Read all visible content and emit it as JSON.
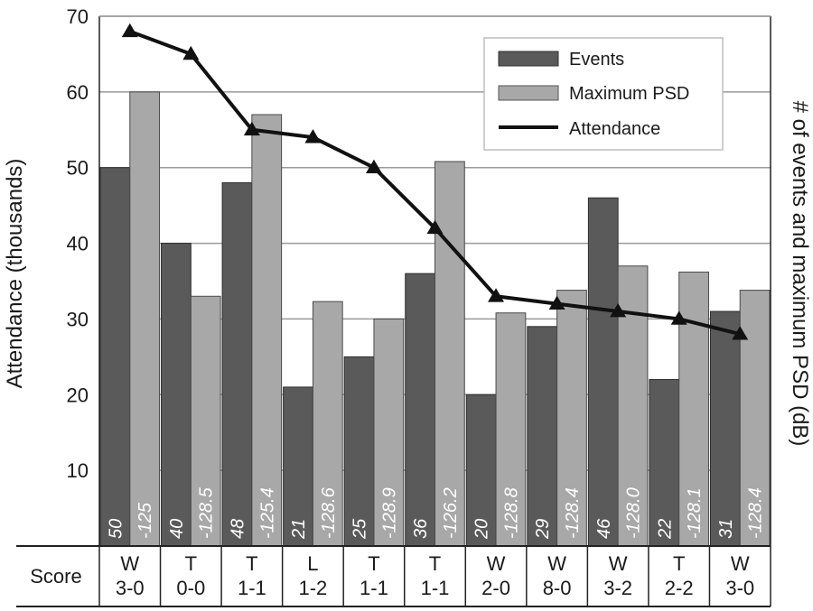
{
  "chart_data": {
    "type": "bar",
    "y_left_label": "Attendance (thousands)",
    "y_right_label": "# of events and maximum PSD (dB)",
    "ylim": [
      0,
      70
    ],
    "yticks": [
      10,
      20,
      30,
      40,
      50,
      60,
      70
    ],
    "grid": true,
    "legend_position": "top-right",
    "colors": {
      "events": "#5a5a5a",
      "psd": "#a8a8a8",
      "attendance": "#111111"
    },
    "score_header": "Score",
    "categories": [
      {
        "result": "W",
        "score": "3-0"
      },
      {
        "result": "T",
        "score": "0-0"
      },
      {
        "result": "T",
        "score": "1-1"
      },
      {
        "result": "L",
        "score": "1-2"
      },
      {
        "result": "T",
        "score": "1-1"
      },
      {
        "result": "T",
        "score": "1-1"
      },
      {
        "result": "W",
        "score": "2-0"
      },
      {
        "result": "W",
        "score": "8-0"
      },
      {
        "result": "W",
        "score": "3-2"
      },
      {
        "result": "T",
        "score": "2-2"
      },
      {
        "result": "W",
        "score": "3-0"
      }
    ],
    "series": [
      {
        "name": "Events",
        "values": [
          50,
          40,
          48,
          21,
          25,
          36,
          20,
          29,
          46,
          22,
          31
        ],
        "labels": [
          "50",
          "40",
          "48",
          "21",
          "25",
          "36",
          "20",
          "29",
          "46",
          "22",
          "31"
        ]
      },
      {
        "name": "Maximum PSD",
        "values": [
          60,
          33,
          57,
          32.3,
          30,
          50.8,
          30.8,
          33.8,
          37,
          36.2,
          33.8
        ],
        "labels": [
          "-125",
          "-128.5",
          "-125.4",
          "-128.6",
          "-128.9",
          "-126.2",
          "-128.8",
          "-128.4",
          "-128.0",
          "-128.1",
          "-128.4"
        ]
      },
      {
        "name": "Attendance",
        "values": [
          68,
          65,
          55,
          54,
          50,
          42,
          33,
          32,
          31,
          30,
          28
        ]
      }
    ]
  }
}
